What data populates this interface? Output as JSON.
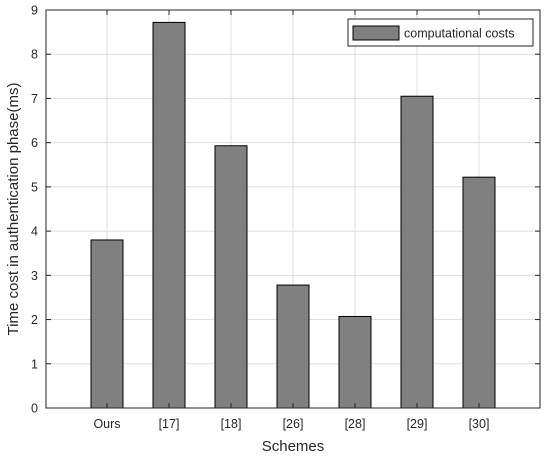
{
  "chart_data": {
    "type": "bar",
    "categories": [
      "Ours",
      "[17]",
      "[18]",
      "[26]",
      "[28]",
      "[29]",
      "[30]"
    ],
    "series": [
      {
        "name": "computational costs",
        "values": [
          3.8,
          8.72,
          5.93,
          2.78,
          2.07,
          7.05,
          5.22
        ]
      }
    ],
    "xlabel": "Schemes",
    "ylabel": "Time cost in authentication phase(ms)",
    "ylim": [
      0,
      9
    ],
    "yticks": [
      0,
      1,
      2,
      3,
      4,
      5,
      6,
      7,
      8,
      9
    ],
    "grid": true,
    "legend_position": "top-right",
    "colors": {
      "bar_fill": "#808080",
      "bar_stroke": "#000000",
      "grid": "#dedede",
      "axis": "#262626"
    }
  }
}
